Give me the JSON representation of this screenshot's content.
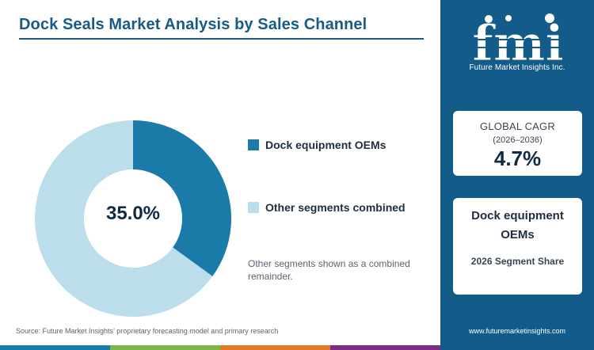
{
  "header": {
    "title": "Dock Seals Market Analysis by Sales Channel"
  },
  "chart_data": {
    "type": "pie",
    "categories": [
      "Dock equipment OEMs",
      "Other segments combined"
    ],
    "values": [
      35.0,
      65.0
    ],
    "unit": "%",
    "center_label": "35.0%",
    "colors": [
      "#1a7aa8",
      "#bcdeea"
    ],
    "legend_position": "right"
  },
  "legend": {
    "items": [
      {
        "label": "Dock equipment OEMs",
        "color": "#1a7aa8"
      },
      {
        "label": "Other segments combined",
        "color": "#bcdeea"
      }
    ]
  },
  "note": "Other segments shown as a combined remainder.",
  "source": "Source: Future Market Insights’ proprietary forecasting model and primary research",
  "sidebar": {
    "logo_text": "fmi",
    "logo_subtitle": "Future Market Insights Inc.",
    "cagr_card": {
      "heading": "GLOBAL CAGR",
      "period": "(2026–2036)",
      "value": "4.7%"
    },
    "segment_card": {
      "heading": "Dock equipment OEMs",
      "subheading": "2026 Segment Share"
    },
    "website": "www.futuremarketinsights.com"
  },
  "colors": {
    "brand_navy": "#135c8a",
    "title_blue": "#1a5b86",
    "bottom_bar": [
      "#1a7aa8",
      "#7ab648",
      "#e07b2b",
      "#7a2e85"
    ]
  }
}
